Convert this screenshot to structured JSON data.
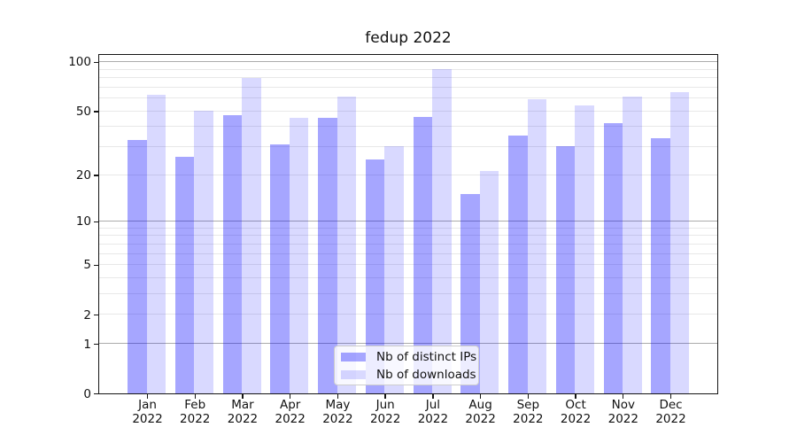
{
  "chart_data": {
    "type": "bar",
    "title": "fedup 2022",
    "categories": [
      "Jan",
      "Feb",
      "Mar",
      "Apr",
      "May",
      "Jun",
      "Jul",
      "Aug",
      "Sep",
      "Oct",
      "Nov",
      "Dec"
    ],
    "category_year": "2022",
    "series": [
      {
        "name": "Nb of distinct IPs",
        "color": "rgba(0,0,255,0.35)",
        "values": [
          33,
          26,
          47,
          31,
          45,
          25,
          46,
          15,
          35,
          30,
          42,
          34
        ]
      },
      {
        "name": "Nb of downloads",
        "color": "rgba(0,0,255,0.15)",
        "values": [
          63,
          50,
          80,
          45,
          61,
          30,
          90,
          21,
          59,
          54,
          61,
          65
        ]
      }
    ],
    "xlabel": "",
    "ylabel": "",
    "y_axis": {
      "scale": "log1p",
      "tick_values": [
        0,
        1,
        2,
        5,
        10,
        20,
        50,
        100
      ],
      "tick_labels": [
        "0",
        "1",
        "2",
        "5",
        "10",
        "20",
        "50",
        "100"
      ],
      "major_grid": [
        1,
        10,
        100
      ],
      "minor_grid": [
        2,
        3,
        4,
        5,
        6,
        7,
        8,
        9,
        20,
        30,
        40,
        50,
        60,
        70,
        80,
        90
      ],
      "top_value": 110,
      "bottom_value": 0
    },
    "legend": {
      "position": "lower center"
    },
    "grid": true
  },
  "colors": {
    "major_grid": "#ababab",
    "minor_grid": "#e8e8e8",
    "spine": "#151515",
    "text": "#111111",
    "legend_border": "#cccccc",
    "legend_bg": "rgba(255,255,255,0.8)"
  }
}
